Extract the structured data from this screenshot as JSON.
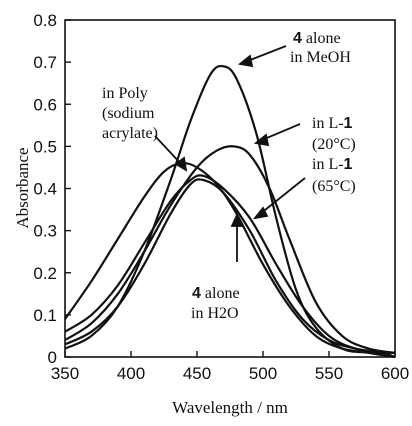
{
  "chart_data": {
    "type": "line",
    "xlabel": "Wavelength / nm",
    "ylabel": "Absorbance",
    "xlim": [
      350,
      600
    ],
    "ylim": [
      0,
      0.8
    ],
    "xticks": [
      350,
      400,
      450,
      500,
      550,
      600
    ],
    "yticks": [
      0,
      0.1,
      0.2,
      0.3,
      0.4,
      0.5,
      0.6,
      0.7,
      0.8
    ],
    "grid": false,
    "series": [
      {
        "x": [
          350,
          370,
          390,
          410,
          430,
          445,
          460,
          470,
          480,
          495,
          510,
          525,
          540,
          560,
          580,
          600
        ],
        "values": [
          0.02,
          0.05,
          0.12,
          0.25,
          0.42,
          0.56,
          0.67,
          0.69,
          0.66,
          0.53,
          0.33,
          0.16,
          0.07,
          0.02,
          0.01,
          0.0
        ],
        "color": "#111111"
      },
      {
        "x": [
          350,
          370,
          390,
          410,
          430,
          450,
          465,
          478,
          490,
          505,
          520,
          540,
          560,
          580,
          600
        ],
        "values": [
          0.04,
          0.08,
          0.15,
          0.25,
          0.36,
          0.45,
          0.49,
          0.5,
          0.48,
          0.4,
          0.28,
          0.13,
          0.05,
          0.02,
          0.01
        ],
        "color": "#111111"
      },
      {
        "x": [
          350,
          370,
          390,
          410,
          430,
          445,
          455,
          470,
          490,
          510,
          530,
          550,
          570,
          590,
          600
        ],
        "values": [
          0.06,
          0.1,
          0.17,
          0.27,
          0.37,
          0.42,
          0.43,
          0.4,
          0.33,
          0.22,
          0.12,
          0.05,
          0.02,
          0.01,
          0.01
        ],
        "color": "#111111"
      },
      {
        "x": [
          350,
          370,
          390,
          410,
          425,
          438,
          450,
          465,
          480,
          500,
          520,
          540,
          560,
          580,
          600
        ],
        "values": [
          0.09,
          0.18,
          0.28,
          0.38,
          0.44,
          0.46,
          0.45,
          0.41,
          0.34,
          0.22,
          0.12,
          0.05,
          0.02,
          0.01,
          0.0
        ],
        "color": "#111111"
      },
      {
        "x": [
          350,
          370,
          390,
          410,
          430,
          445,
          455,
          470,
          490,
          510,
          530,
          550,
          570,
          590,
          600
        ],
        "values": [
          0.03,
          0.06,
          0.12,
          0.22,
          0.34,
          0.41,
          0.42,
          0.39,
          0.3,
          0.18,
          0.09,
          0.04,
          0.02,
          0.01,
          0.0
        ],
        "color": "#111111"
      }
    ],
    "annotations": [
      {
        "bold": "4",
        "line1": " alone",
        "line2": "in MeOH"
      },
      {
        "line1": "in L-",
        "bold": "1",
        "line2": "(20°C)"
      },
      {
        "line1": "in L-",
        "bold": "1",
        "line2": "(65°C)"
      },
      {
        "line1": "in Poly",
        "line2": "(sodium",
        "line3": "acrylate)"
      },
      {
        "bold": "4",
        "line1": " alone",
        "line2": "in H2O"
      }
    ]
  }
}
